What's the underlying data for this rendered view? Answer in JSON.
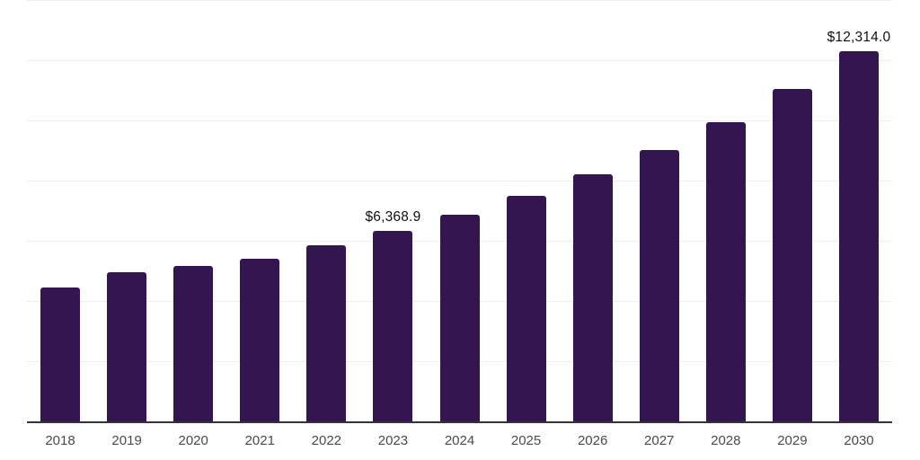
{
  "chart_data": {
    "type": "bar",
    "title": "",
    "xlabel": "",
    "ylabel": "",
    "categories": [
      "2018",
      "2019",
      "2020",
      "2021",
      "2022",
      "2023",
      "2024",
      "2025",
      "2026",
      "2027",
      "2028",
      "2029",
      "2030"
    ],
    "values": [
      4480,
      4990,
      5190,
      5440,
      5880,
      6368.9,
      6900,
      7520,
      8240,
      9050,
      9960,
      11070,
      12314.0
    ],
    "data_labels": {
      "2023": "$6,368.9",
      "2030": "$12,314.0"
    },
    "ylim": [
      0,
      14000
    ],
    "gridline_step": 2000,
    "grid": "horizontal-only",
    "legend": "none",
    "colors": {
      "bar": "#331550",
      "gridline": "#efefef",
      "axis_line": "#333333",
      "tick_label": "#4a4a4a",
      "data_label": "#111111",
      "background": "#ffffff"
    }
  }
}
